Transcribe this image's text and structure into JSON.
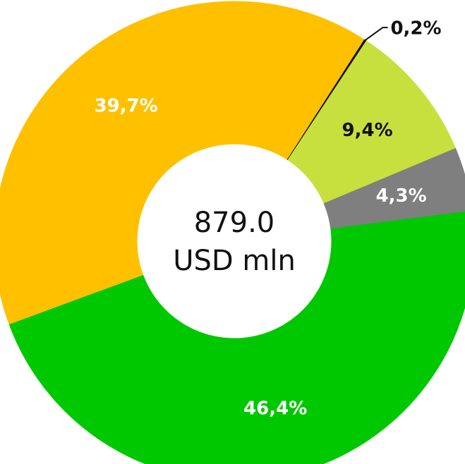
{
  "chart_data": {
    "type": "pie",
    "center_text": [
      "879.0",
      "USD mln"
    ],
    "categories": [
      null,
      null,
      null,
      null,
      null
    ],
    "values": [
      0.2,
      9.4,
      4.3,
      46.4,
      39.7
    ],
    "value_labels": [
      "0,2%",
      "9,4%",
      "4,3%",
      "46,4%",
      "39,7%"
    ],
    "colors": [
      "#111111",
      "#c8e03e",
      "#7f7f7f",
      "#00c800",
      "#ffc000"
    ]
  }
}
